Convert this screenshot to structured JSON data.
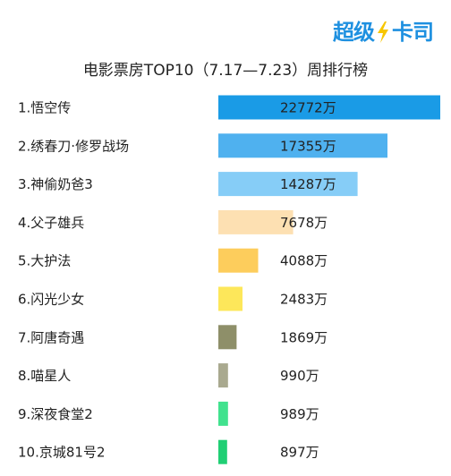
{
  "logo": {
    "text": "超级卡司",
    "accent": "#1e90e0",
    "icon": "lightning-bolt-icon",
    "icon_color": "#f7c600"
  },
  "chart_data": {
    "type": "bar",
    "orientation": "horizontal",
    "title": "电影票房TOP10（7.17—7.23）周排行榜",
    "categories": [
      "1.悟空传",
      "2.绣春刀·修罗战场",
      "3.神偷奶爸3",
      "4.父子雄兵",
      "5.大护法",
      "6.闪光少女",
      "7.阿唐奇遇",
      "8.喵星人",
      "9.深夜食堂2",
      "10.京城81号2"
    ],
    "values": [
      22772,
      17355,
      14287,
      7678,
      4088,
      2483,
      1869,
      990,
      989,
      897
    ],
    "value_labels": [
      "22772万",
      "17355万",
      "14287万",
      "7678万",
      "4088万",
      "2483万",
      "1869万",
      "990万",
      "989万",
      "897万"
    ],
    "unit": "万",
    "colors": [
      "#1a9be6",
      "#4fb1ef",
      "#86cdf7",
      "#fde0b2",
      "#fdcd5c",
      "#fde75a",
      "#8e8f69",
      "#a9a98f",
      "#41e28e",
      "#20cf74"
    ],
    "xlim": [
      0,
      22772
    ],
    "grid": false,
    "legend": "none"
  }
}
